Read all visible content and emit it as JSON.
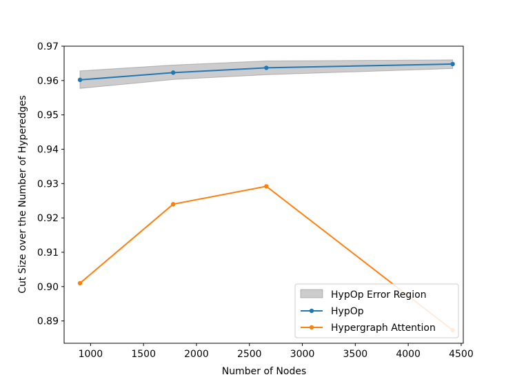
{
  "chart_data": {
    "type": "line",
    "title": "",
    "xlabel": "Number of Nodes",
    "ylabel": "Cut Size over the Number of Hyperedges",
    "xlim": [
      750,
      4520
    ],
    "ylim": [
      0.8835,
      0.97
    ],
    "xticks": [
      1000,
      1500,
      2000,
      2500,
      3000,
      3500,
      4000,
      4500
    ],
    "yticks": [
      0.89,
      0.9,
      0.91,
      0.92,
      0.93,
      0.94,
      0.95,
      0.96,
      0.97
    ],
    "xtick_labels": [
      "1000",
      "1500",
      "2000",
      "2500",
      "3000",
      "3500",
      "4000",
      "4500"
    ],
    "ytick_labels": [
      "0.89",
      "0.90",
      "0.91",
      "0.92",
      "0.93",
      "0.94",
      "0.95",
      "0.96",
      "0.97"
    ],
    "grid": false,
    "legend_position": "lower-right",
    "error_region": {
      "name": "HypOp Error Region",
      "color": "#808080",
      "x": [
        900,
        1780,
        2660,
        4420
      ],
      "lower": [
        0.9577,
        0.9603,
        0.9617,
        0.9635
      ],
      "upper": [
        0.9628,
        0.9645,
        0.9657,
        0.966
      ]
    },
    "series": [
      {
        "name": "HypOp",
        "color": "#1f77b4",
        "x": [
          900,
          1780,
          2660,
          4420
        ],
        "y": [
          0.9602,
          0.9623,
          0.9637,
          0.9648
        ]
      },
      {
        "name": "Hypergraph Attention",
        "color": "#ff7f0e",
        "x": [
          900,
          1780,
          2660,
          4420
        ],
        "y": [
          0.901,
          0.924,
          0.9292,
          0.8873
        ]
      }
    ]
  }
}
